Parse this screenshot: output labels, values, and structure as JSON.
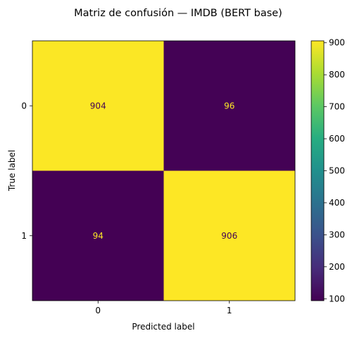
{
  "chart_data": {
    "type": "heatmap",
    "title": "Matriz de confusión — IMDB (BERT base)",
    "xlabel": "Predicted label",
    "ylabel": "True label",
    "x_categories": [
      "0",
      "1"
    ],
    "y_categories": [
      "0",
      "1"
    ],
    "values": [
      [
        904,
        96
      ],
      [
        94,
        906
      ]
    ],
    "colormap": "viridis",
    "colorbar": {
      "range": [
        94,
        906
      ],
      "ticks": [
        "100",
        "200",
        "300",
        "400",
        "500",
        "600",
        "700",
        "800",
        "900"
      ]
    },
    "grid": false,
    "colors": {
      "high": "#fde725",
      "low": "#440154",
      "text_on_high": "#440154",
      "text_on_low": "#fde725"
    }
  }
}
